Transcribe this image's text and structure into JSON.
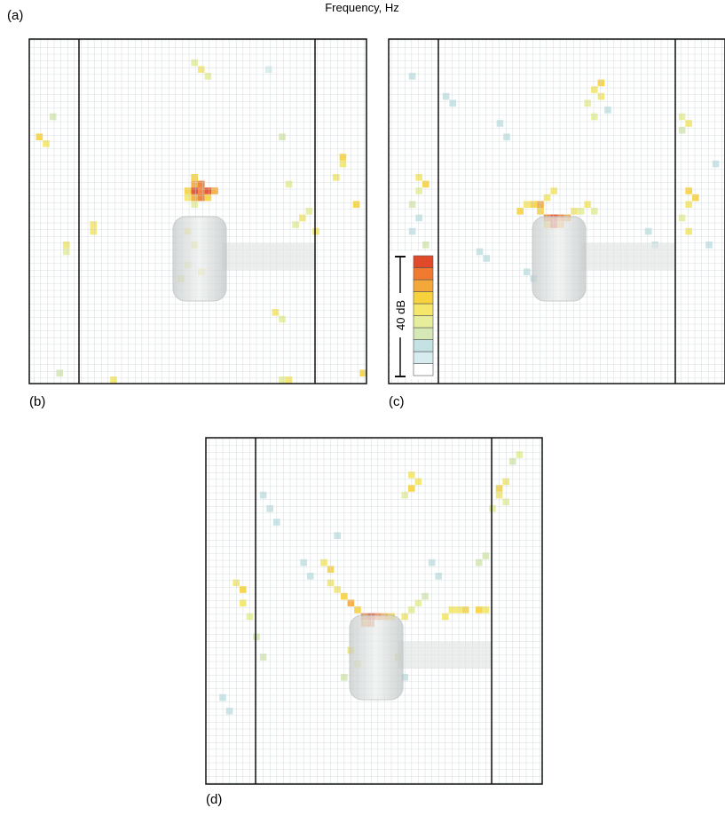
{
  "figure": {
    "label_a": "(a)",
    "axis_label": "Frequency, Hz",
    "panels": [
      {
        "label": "(b)"
      },
      {
        "label": "(c)"
      },
      {
        "label": "(d)"
      }
    ],
    "colorbar_label": "40 dB"
  }
}
